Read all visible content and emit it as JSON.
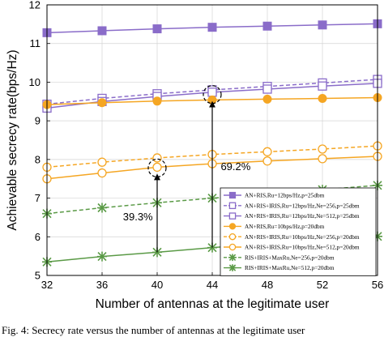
{
  "chart_data": {
    "type": "line",
    "xlabel": "Number of antennas at the legitimate user",
    "ylabel": "Achievable secrecy rate(bps/Hz)",
    "xlim": [
      32,
      56
    ],
    "ylim": [
      5,
      12
    ],
    "x_ticks": [
      "32",
      "36",
      "40",
      "44",
      "48",
      "52",
      "56"
    ],
    "y_ticks": [
      "5",
      "6",
      "7",
      "8",
      "9",
      "10",
      "11",
      "12"
    ],
    "grid": true,
    "legend_position": "bottom-right",
    "x": [
      32,
      36,
      40,
      44,
      48,
      52,
      56
    ],
    "series": [
      {
        "name": "AN+RIS,Ru=12bps/Hz,p=25dbm",
        "color": "#8a6cc9",
        "marker": "square-filled",
        "line": "solid",
        "values": [
          11.28,
          11.33,
          11.38,
          11.42,
          11.45,
          11.48,
          11.51
        ]
      },
      {
        "name": "AN+RIS+IRIS,Ru=12bps/Hz,Ne=256,p=25dbm",
        "color": "#8a6cc9",
        "marker": "square-open",
        "line": "dashed",
        "values": [
          9.43,
          9.58,
          9.7,
          9.8,
          9.89,
          9.98,
          10.07
        ]
      },
      {
        "name": "AN+RIS+IRIS,Ru=12bps/Hz,Ne=512,p=25dbm",
        "color": "#8a6cc9",
        "marker": "square-open",
        "line": "solid",
        "values": [
          9.33,
          9.5,
          9.63,
          9.74,
          9.82,
          9.9,
          9.97
        ]
      },
      {
        "name": "AN+RIS,Ru=10bps/Hz,p=20dbm",
        "color": "#f5a623",
        "marker": "circle-filled",
        "line": "solid",
        "values": [
          9.42,
          9.47,
          9.51,
          9.54,
          9.56,
          9.58,
          9.6
        ]
      },
      {
        "name": "AN+RIS+IRIS,Ru=10bps/Hz,Ne=256,p=20dbm",
        "color": "#f5a623",
        "marker": "circle-open",
        "line": "dashed",
        "values": [
          7.8,
          7.93,
          8.04,
          8.13,
          8.2,
          8.27,
          8.35
        ]
      },
      {
        "name": "AN+RIS+IRIS,Ru=10bps/Hz,Ne=512,p=20dbm",
        "color": "#f5a623",
        "marker": "circle-open",
        "line": "solid",
        "values": [
          7.5,
          7.65,
          7.8,
          7.89,
          7.96,
          8.02,
          8.08
        ]
      },
      {
        "name": "RIS+IRIS+MaxRu,Ne=256,p=20dbm",
        "color": "#5a9a46",
        "marker": "x",
        "line": "dashed",
        "values": [
          6.6,
          6.75,
          6.88,
          7.0,
          7.1,
          7.22,
          7.33
        ]
      },
      {
        "name": "RIS+IRIS+MaxRu,Ne=512,p=20dbm",
        "color": "#5a9a46",
        "marker": "x",
        "line": "solid",
        "values": [
          5.35,
          5.49,
          5.6,
          5.72,
          5.82,
          5.92,
          6.01
        ]
      }
    ],
    "annotations": [
      {
        "text": "39.3%",
        "x": 40,
        "from_y": 5.6,
        "to_y": 7.8
      },
      {
        "text": "69.2%",
        "x": 44,
        "from_y": 5.72,
        "to_y": 9.68
      }
    ]
  },
  "caption": "Fig. 4: Secrecy rate versus the number of antennas at the legitimate user"
}
